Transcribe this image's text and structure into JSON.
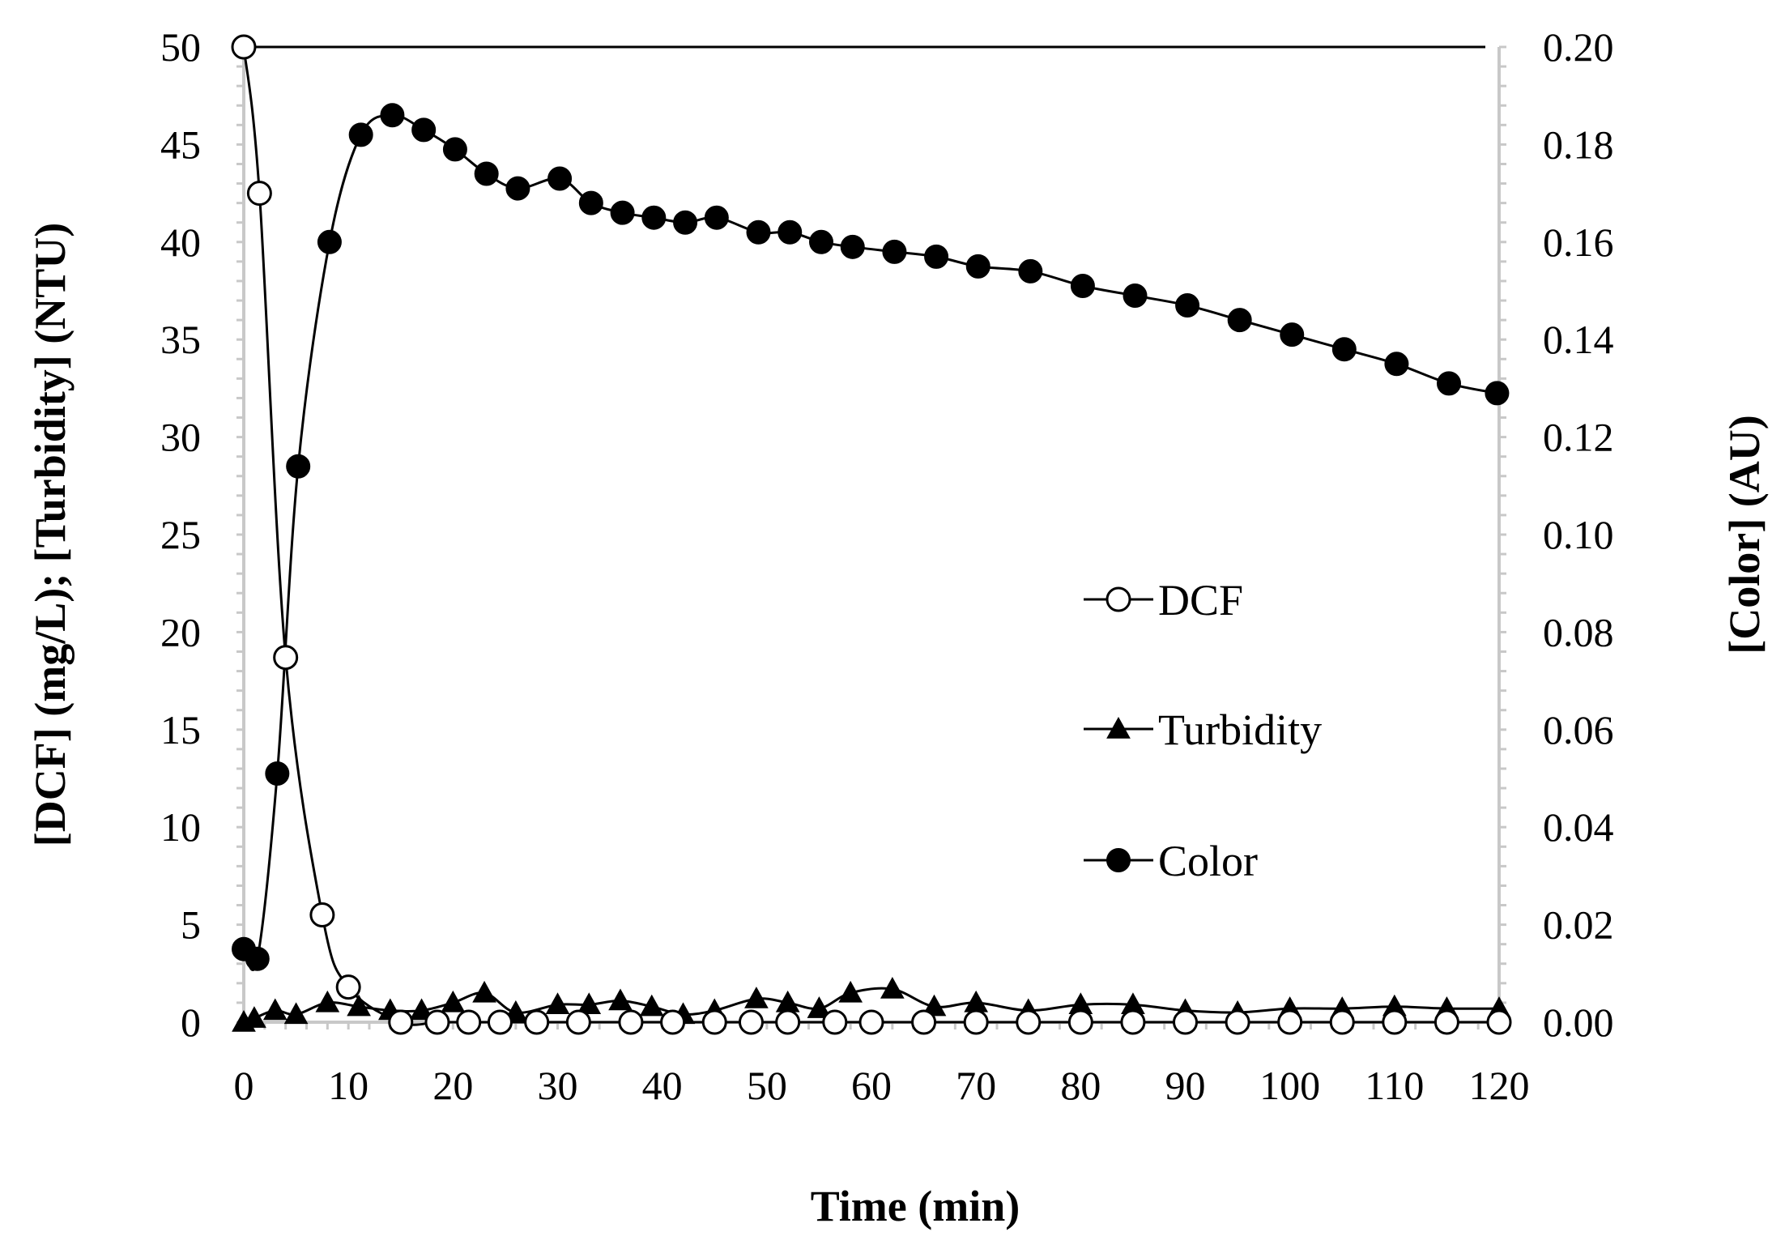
{
  "chart_data": {
    "type": "line",
    "title": "",
    "xlabel": "Time (min)",
    "ylabel": "[DCF] (mg/L); [Turbidity] (NTU)",
    "y2label": "[Color] (AU)",
    "xlim": [
      0,
      120
    ],
    "ylim": [
      0,
      50
    ],
    "y2lim": [
      0,
      0.2
    ],
    "x_ticks": [
      "0",
      "10",
      "20",
      "30",
      "40",
      "50",
      "60",
      "70",
      "80",
      "90",
      "100",
      "110",
      "120"
    ],
    "y_ticks": [
      "0",
      "5",
      "10",
      "15",
      "20",
      "25",
      "30",
      "35",
      "40",
      "45",
      "50"
    ],
    "y2_ticks": [
      "0.00",
      "0.02",
      "0.04",
      "0.06",
      "0.08",
      "0.10",
      "0.12",
      "0.14",
      "0.16",
      "0.18",
      "0.20"
    ],
    "legend_position": "right-center",
    "grid": false,
    "series": [
      {
        "name": "DCF",
        "axis": "left",
        "marker": "open-circle",
        "x": [
          0,
          1.5,
          4,
          7.5,
          10,
          15,
          18.5,
          21.5,
          24.5,
          28,
          32,
          37,
          41,
          45,
          48.5,
          52,
          56.5,
          60,
          65,
          70,
          75,
          80,
          85,
          90,
          95,
          100,
          105,
          110,
          115,
          120
        ],
        "y": [
          50,
          42.5,
          18.7,
          5.5,
          1.8,
          0,
          0,
          0,
          0,
          0,
          0,
          0,
          0,
          0,
          0,
          0,
          0,
          0,
          0,
          0,
          0,
          0,
          0,
          0,
          0,
          0,
          0,
          0,
          0,
          0
        ]
      },
      {
        "name": "Turbidity",
        "axis": "left",
        "marker": "filled-triangle",
        "x": [
          0,
          1,
          3,
          5,
          8,
          11,
          14,
          17,
          20,
          23,
          26,
          30,
          33,
          36,
          39,
          42,
          45,
          49,
          52,
          55,
          58,
          62,
          66,
          70,
          75,
          80,
          85,
          90,
          95,
          100,
          105,
          110,
          115,
          120
        ],
        "y": [
          0,
          0.2,
          0.6,
          0.4,
          1.0,
          0.8,
          0.6,
          0.6,
          1.0,
          1.5,
          0.5,
          0.9,
          0.9,
          1.1,
          0.8,
          0.4,
          0.6,
          1.2,
          1.0,
          0.7,
          1.5,
          1.7,
          0.8,
          1.0,
          0.6,
          0.9,
          0.9,
          0.6,
          0.5,
          0.7,
          0.7,
          0.8,
          0.7,
          0.7
        ]
      },
      {
        "name": "Color",
        "axis": "right",
        "marker": "filled-circle",
        "x": [
          0,
          1.3,
          3.2,
          5.2,
          8.2,
          11.2,
          14.2,
          17.2,
          20.2,
          23.2,
          26.2,
          30.2,
          33.2,
          36.2,
          39.2,
          42.2,
          45.2,
          49.2,
          52.2,
          55.2,
          58.2,
          62.2,
          66.2,
          70.2,
          75.2,
          80.2,
          85.2,
          90.2,
          95.2,
          100.2,
          105.2,
          110.2,
          115.2,
          119.8
        ],
        "y": [
          0.015,
          0.013,
          0.051,
          0.114,
          0.16,
          0.182,
          0.186,
          0.183,
          0.179,
          0.174,
          0.171,
          0.173,
          0.168,
          0.166,
          0.165,
          0.164,
          0.165,
          0.162,
          0.162,
          0.16,
          0.159,
          0.158,
          0.157,
          0.155,
          0.154,
          0.151,
          0.149,
          0.147,
          0.144,
          0.141,
          0.138,
          0.135,
          0.131,
          0.129
        ]
      }
    ]
  }
}
